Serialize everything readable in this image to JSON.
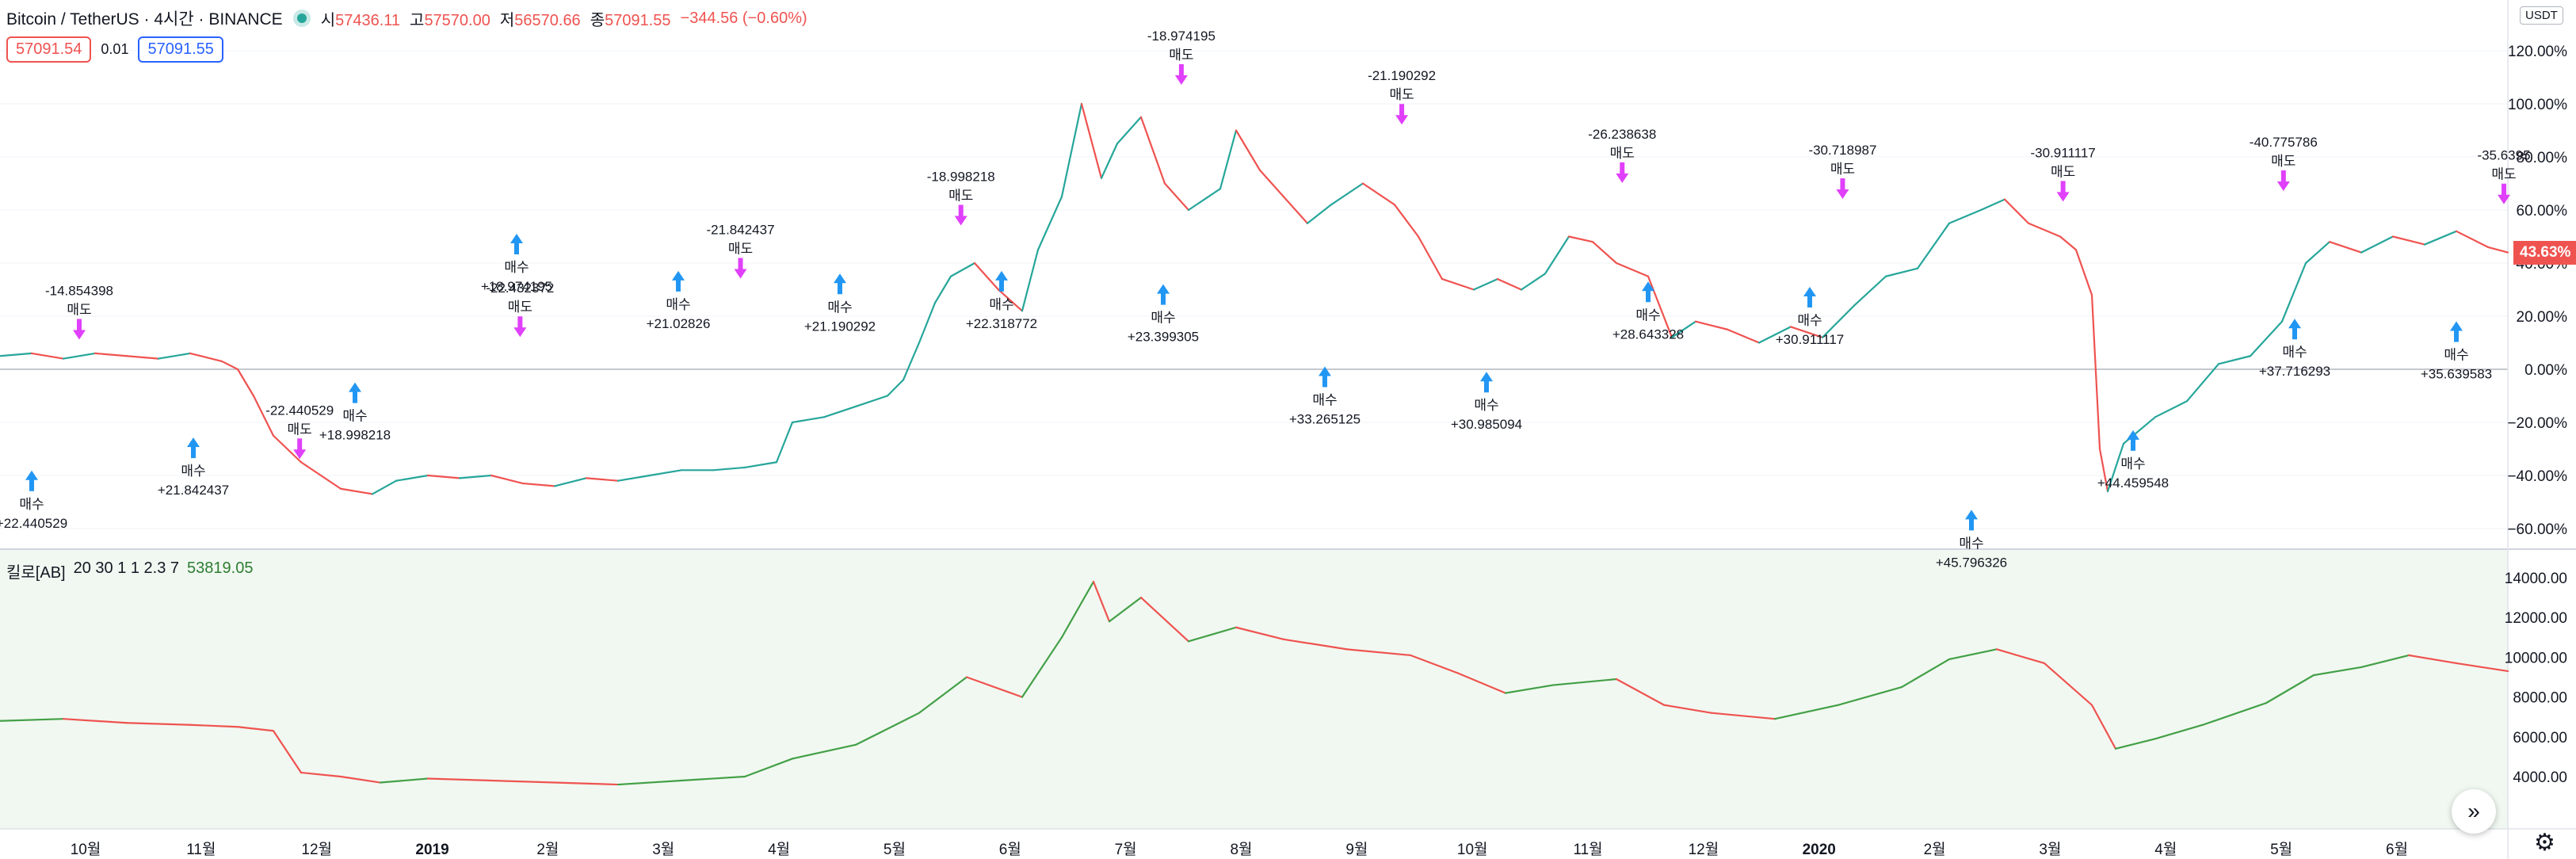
{
  "symbol": {
    "title": "Bitcoin / TetherUS · 4시간 · BINANCE",
    "open_label": "시",
    "open": "57436.11",
    "high_label": "고",
    "high": "57570.00",
    "low_label": "저",
    "low": "56570.66",
    "close_label": "종",
    "close": "57091.55",
    "change": "−344.56 (−0.60%)"
  },
  "quote": {
    "sell": "57091.54",
    "spread": "0.01",
    "buy": "57091.55"
  },
  "currency": "USDT",
  "last_change_tag": "43.63%",
  "indicator": {
    "name": "킬로[AB]",
    "params": "20 30 1 1 2.3 7",
    "value": "53819.05"
  },
  "colors": {
    "up": "#26a69a",
    "down": "#ef5350",
    "buy_arrow": "#2196f3",
    "sell_arrow": "#e040fb",
    "line_up": "#43a047",
    "line_down": "#ef5350"
  },
  "chart_data": {
    "type": "line",
    "price_axis": {
      "unit": "%",
      "ticks": [
        "120.00%",
        "100.00%",
        "80.00%",
        "60.00%",
        "40.00%",
        "20.00%",
        "0.00%",
        "−20.00%",
        "−40.00%",
        "−60.00%"
      ],
      "tick_values": [
        120,
        100,
        80,
        60,
        40,
        20,
        0,
        -20,
        -40,
        -60
      ]
    },
    "indicator_axis": {
      "ticks": [
        "14000.00",
        "12000.00",
        "10000.00",
        "8000.00",
        "6000.00",
        "4000.00"
      ],
      "tick_values": [
        14000,
        12000,
        10000,
        8000,
        6000,
        4000
      ]
    },
    "time_axis": [
      "10월",
      "11월",
      "12월",
      "2019",
      "2월",
      "3월",
      "4월",
      "5월",
      "6월",
      "7월",
      "8월",
      "9월",
      "10월",
      "11월",
      "12월",
      "2020",
      "2월",
      "3월",
      "4월",
      "5월",
      "6월"
    ],
    "price_series": [
      [
        0,
        5
      ],
      [
        40,
        6
      ],
      [
        80,
        4
      ],
      [
        120,
        6
      ],
      [
        160,
        5
      ],
      [
        200,
        4
      ],
      [
        240,
        6
      ],
      [
        280,
        3
      ],
      [
        300,
        0
      ],
      [
        320,
        -10
      ],
      [
        345,
        -25
      ],
      [
        380,
        -35
      ],
      [
        430,
        -45
      ],
      [
        470,
        -47
      ],
      [
        500,
        -42
      ],
      [
        540,
        -40
      ],
      [
        580,
        -41
      ],
      [
        620,
        -40
      ],
      [
        660,
        -43
      ],
      [
        700,
        -44
      ],
      [
        740,
        -41
      ],
      [
        780,
        -42
      ],
      [
        820,
        -40
      ],
      [
        860,
        -38
      ],
      [
        900,
        -38
      ],
      [
        940,
        -37
      ],
      [
        980,
        -35
      ],
      [
        1000,
        -20
      ],
      [
        1040,
        -18
      ],
      [
        1080,
        -14
      ],
      [
        1120,
        -10
      ],
      [
        1140,
        -4
      ],
      [
        1160,
        10
      ],
      [
        1180,
        25
      ],
      [
        1200,
        35
      ],
      [
        1230,
        40
      ],
      [
        1260,
        30
      ],
      [
        1290,
        22
      ],
      [
        1310,
        45
      ],
      [
        1340,
        65
      ],
      [
        1365,
        100
      ],
      [
        1390,
        72
      ],
      [
        1410,
        85
      ],
      [
        1440,
        95
      ],
      [
        1470,
        70
      ],
      [
        1500,
        60
      ],
      [
        1540,
        68
      ],
      [
        1560,
        90
      ],
      [
        1590,
        75
      ],
      [
        1620,
        65
      ],
      [
        1650,
        55
      ],
      [
        1680,
        62
      ],
      [
        1720,
        70
      ],
      [
        1760,
        62
      ],
      [
        1790,
        50
      ],
      [
        1820,
        34
      ],
      [
        1860,
        30
      ],
      [
        1890,
        34
      ],
      [
        1920,
        30
      ],
      [
        1950,
        36
      ],
      [
        1980,
        50
      ],
      [
        2010,
        48
      ],
      [
        2040,
        40
      ],
      [
        2080,
        35
      ],
      [
        2110,
        12
      ],
      [
        2140,
        18
      ],
      [
        2180,
        15
      ],
      [
        2220,
        10
      ],
      [
        2260,
        16
      ],
      [
        2300,
        12
      ],
      [
        2340,
        24
      ],
      [
        2380,
        35
      ],
      [
        2420,
        38
      ],
      [
        2460,
        55
      ],
      [
        2500,
        60
      ],
      [
        2530,
        64
      ],
      [
        2560,
        55
      ],
      [
        2600,
        50
      ],
      [
        2620,
        45
      ],
      [
        2640,
        28
      ],
      [
        2650,
        -30
      ],
      [
        2660,
        -46
      ],
      [
        2680,
        -28
      ],
      [
        2720,
        -18
      ],
      [
        2760,
        -12
      ],
      [
        2800,
        2
      ],
      [
        2840,
        5
      ],
      [
        2880,
        18
      ],
      [
        2910,
        40
      ],
      [
        2940,
        48
      ],
      [
        2980,
        44
      ],
      [
        3020,
        50
      ],
      [
        3060,
        47
      ],
      [
        3100,
        52
      ],
      [
        3140,
        46
      ],
      [
        3165,
        44
      ]
    ],
    "indicator_series": [
      [
        0,
        6800
      ],
      [
        80,
        6900
      ],
      [
        160,
        6700
      ],
      [
        240,
        6600
      ],
      [
        300,
        6500
      ],
      [
        345,
        6300
      ],
      [
        380,
        4200
      ],
      [
        430,
        4000
      ],
      [
        480,
        3700
      ],
      [
        540,
        3900
      ],
      [
        620,
        3800
      ],
      [
        700,
        3700
      ],
      [
        780,
        3600
      ],
      [
        860,
        3800
      ],
      [
        940,
        4000
      ],
      [
        1000,
        4900
      ],
      [
        1080,
        5600
      ],
      [
        1160,
        7200
      ],
      [
        1220,
        9000
      ],
      [
        1290,
        8000
      ],
      [
        1340,
        11000
      ],
      [
        1380,
        13800
      ],
      [
        1400,
        11800
      ],
      [
        1440,
        13000
      ],
      [
        1500,
        10800
      ],
      [
        1560,
        11500
      ],
      [
        1620,
        10900
      ],
      [
        1700,
        10400
      ],
      [
        1780,
        10100
      ],
      [
        1840,
        9200
      ],
      [
        1900,
        8200
      ],
      [
        1960,
        8600
      ],
      [
        2040,
        8900
      ],
      [
        2100,
        7600
      ],
      [
        2160,
        7200
      ],
      [
        2240,
        6900
      ],
      [
        2320,
        7600
      ],
      [
        2400,
        8500
      ],
      [
        2460,
        9900
      ],
      [
        2520,
        10400
      ],
      [
        2580,
        9700
      ],
      [
        2640,
        7600
      ],
      [
        2670,
        5400
      ],
      [
        2720,
        5900
      ],
      [
        2780,
        6600
      ],
      [
        2860,
        7700
      ],
      [
        2920,
        9100
      ],
      [
        2980,
        9500
      ],
      [
        3040,
        10100
      ],
      [
        3100,
        9700
      ],
      [
        3165,
        9300
      ]
    ],
    "buy_signals": [
      {
        "pct": -29.18,
        "label": "+22.440529"
      },
      {
        "pct": -16.76,
        "label": "+21.842437"
      },
      {
        "pct": 4.0,
        "label": "+18.998218"
      },
      {
        "pct": 60.0,
        "label": "+18.974195"
      },
      {
        "pct": 46.0,
        "label": "+21.02826"
      },
      {
        "pct": 45.0,
        "label": "+21.190292"
      },
      {
        "pct": 46.0,
        "label": "+22.318772"
      },
      {
        "pct": 41.0,
        "label": "+23.399305"
      },
      {
        "pct": 10.0,
        "label": "+33.265125"
      },
      {
        "pct": 8.0,
        "label": "+30.985094"
      },
      {
        "pct": 42.0,
        "label": "+28.643328"
      },
      {
        "pct": 40.0,
        "label": "+30.911117"
      },
      {
        "pct": -44.0,
        "label": "+45.796326"
      },
      {
        "pct": -14.0,
        "label": "+44.459548"
      },
      {
        "pct": 28.0,
        "label": "+37.716293"
      },
      {
        "pct": 27.0,
        "label": "+35.639583"
      }
    ],
    "sell_signals": [
      {
        "pct": 7.0,
        "label": "-14.854398"
      },
      {
        "pct": -38.0,
        "label": "-22.440529"
      },
      {
        "pct": 8.0,
        "label": "-22.432372"
      },
      {
        "pct": 30.0,
        "label": "-21.842437"
      },
      {
        "pct": 50.0,
        "label": "-18.998218"
      },
      {
        "pct": 103.0,
        "label": "-18.974195"
      },
      {
        "pct": 88.0,
        "label": "-21.190292"
      },
      {
        "pct": 66.0,
        "label": "-26.238638"
      },
      {
        "pct": 60.0,
        "label": "-30.718987"
      },
      {
        "pct": 59.0,
        "label": "-30.911117"
      },
      {
        "pct": 63.0,
        "label": "-40.775786"
      },
      {
        "pct": 58.0,
        "label": "-35.6395"
      }
    ],
    "signal_words": {
      "buy": "매수",
      "sell": "매도"
    }
  }
}
